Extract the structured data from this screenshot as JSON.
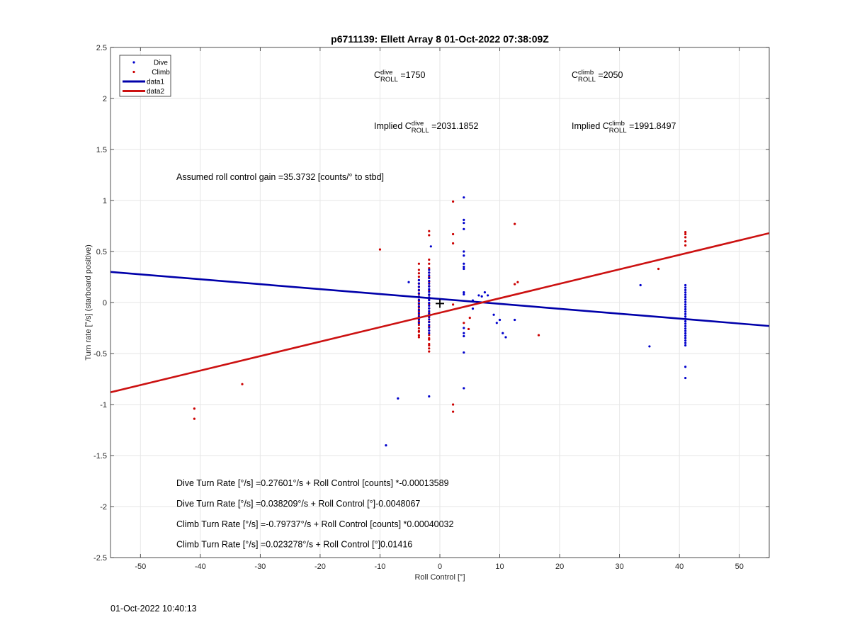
{
  "chart_data": {
    "type": "scatter",
    "title": "p6711139: Ellett Array 8 01-Oct-2022 07:38:09Z",
    "xlabel": "Roll Control [°]",
    "ylabel": "Turn rate [°/s] (starboard positive)",
    "xlim": [
      -55,
      55
    ],
    "ylim": [
      -2.5,
      2.5
    ],
    "xticks": [
      -50,
      -40,
      -30,
      -20,
      -10,
      0,
      10,
      20,
      30,
      40,
      50
    ],
    "yticks": [
      -2.5,
      -2,
      -1.5,
      -1,
      -0.5,
      0,
      0.5,
      1,
      1.5,
      2,
      2.5
    ],
    "xtick_labels": [
      "-50",
      "-40",
      "-30",
      "-20",
      "-10",
      "0",
      "10",
      "20",
      "30",
      "40",
      "50"
    ],
    "ytick_labels": [
      "-2.5",
      "-2",
      "-1.5",
      "-1",
      "-0.5",
      "0",
      "0.5",
      "1",
      "1.5",
      "2",
      "2.5"
    ],
    "grid": true,
    "legend_position": "top-left",
    "legend": [
      {
        "label": "Dive",
        "kind": "dot",
        "color": "#0000cc"
      },
      {
        "label": "Climb",
        "kind": "dot",
        "color": "#cc0000"
      },
      {
        "label": "data1",
        "kind": "line",
        "color": "#0000aa"
      },
      {
        "label": "data2",
        "kind": "line",
        "color": "#cc1111"
      }
    ],
    "series": [
      {
        "name": "Dive",
        "kind": "scatter",
        "color": "#0000cc",
        "points": [
          [
            -9,
            -1.4
          ],
          [
            -7,
            -0.94
          ],
          [
            -5.2,
            0.2
          ],
          [
            -1.8,
            -0.92
          ],
          [
            -1.5,
            0.55
          ],
          [
            4,
            1.03
          ],
          [
            4,
            0.81
          ],
          [
            4,
            0.78
          ],
          [
            4,
            0.72
          ],
          [
            4,
            0.5
          ],
          [
            4,
            0.46
          ],
          [
            4,
            0.38
          ],
          [
            4,
            0.35
          ],
          [
            4,
            0.33
          ],
          [
            4,
            0.1
          ],
          [
            4,
            0.08
          ],
          [
            4,
            -0.25
          ],
          [
            4,
            -0.3
          ],
          [
            4,
            -0.33
          ],
          [
            4,
            -0.49
          ],
          [
            4,
            -0.84
          ],
          [
            5.5,
            0.02
          ],
          [
            5.5,
            -0.06
          ],
          [
            6.5,
            0.07
          ],
          [
            7,
            0.06
          ],
          [
            7.5,
            0.1
          ],
          [
            8,
            0.07
          ],
          [
            9,
            -0.12
          ],
          [
            9.5,
            -0.2
          ],
          [
            10,
            -0.17
          ],
          [
            10.5,
            -0.3
          ],
          [
            11,
            -0.34
          ],
          [
            12.5,
            -0.17
          ],
          [
            33.5,
            0.17
          ],
          [
            35,
            -0.43
          ],
          [
            41,
            -0.63
          ],
          [
            41,
            -0.74
          ]
        ]
      },
      {
        "name": "Climb",
        "kind": "scatter",
        "color": "#cc0000",
        "points": [
          [
            -41,
            -1.04
          ],
          [
            -41,
            -1.14
          ],
          [
            -33,
            -0.8
          ],
          [
            -10,
            0.52
          ],
          [
            -3.5,
            0.38
          ],
          [
            -3.5,
            -0.34
          ],
          [
            -3.5,
            -0.28
          ],
          [
            -1.8,
            0.7
          ],
          [
            -1.8,
            0.66
          ],
          [
            -1.8,
            0.42
          ],
          [
            -1.8,
            -0.35
          ],
          [
            -1.8,
            -0.42
          ],
          [
            -1.8,
            -0.48
          ],
          [
            2.2,
            0.99
          ],
          [
            2.2,
            0.67
          ],
          [
            2.2,
            0.58
          ],
          [
            2.2,
            -0.02
          ],
          [
            2.2,
            -1.0
          ],
          [
            2.2,
            -1.07
          ],
          [
            4,
            -0.2
          ],
          [
            4.8,
            -0.26
          ],
          [
            5,
            -0.15
          ],
          [
            12.5,
            0.77
          ],
          [
            12.5,
            0.18
          ],
          [
            13,
            0.2
          ],
          [
            16.5,
            -0.32
          ],
          [
            36.5,
            0.33
          ],
          [
            41,
            0.69
          ],
          [
            41,
            0.67
          ],
          [
            41,
            0.64
          ],
          [
            41,
            0.6
          ],
          [
            41,
            0.56
          ]
        ]
      }
    ],
    "dense_columns": [
      {
        "series": "Climb",
        "x": -3.5,
        "y_range": [
          -0.32,
          0.32
        ],
        "count": 20
      },
      {
        "series": "Climb",
        "x": -1.8,
        "y_range": [
          -0.45,
          0.38
        ],
        "count": 20
      },
      {
        "series": "Dive",
        "x": -3.5,
        "y_range": [
          -0.2,
          0.22
        ],
        "count": 14
      },
      {
        "series": "Dive",
        "x": -1.8,
        "y_range": [
          -0.3,
          0.32
        ],
        "count": 24
      },
      {
        "series": "Dive",
        "x": 41,
        "y_range": [
          -0.42,
          0.17
        ],
        "count": 26
      }
    ],
    "lines": [
      {
        "name": "data1",
        "color": "#0000aa",
        "x": [
          -55,
          55
        ],
        "y": [
          0.3,
          -0.23
        ]
      },
      {
        "name": "data2",
        "color": "#cc1111",
        "x": [
          -55,
          55
        ],
        "y": [
          -0.88,
          0.68
        ]
      }
    ],
    "marker": {
      "symbol": "+",
      "x": 0,
      "y": -0.01
    },
    "annotations": [
      {
        "parts": [
          {
            "t": "C"
          },
          {
            "t": "dive",
            "sup": true
          },
          {
            "t": "ROLL",
            "sub": true
          },
          {
            "t": " =1750"
          }
        ],
        "x": -11,
        "y": 2.2
      },
      {
        "parts": [
          {
            "t": "C"
          },
          {
            "t": "climb",
            "sup": true
          },
          {
            "t": "ROLL",
            "sub": true
          },
          {
            "t": " =2050"
          }
        ],
        "x": 22,
        "y": 2.2
      },
      {
        "parts": [
          {
            "t": "Implied C"
          },
          {
            "t": "dive",
            "sup": true
          },
          {
            "t": "ROLL",
            "sub": true
          },
          {
            "t": " =2031.1852"
          }
        ],
        "x": -11,
        "y": 1.7
      },
      {
        "parts": [
          {
            "t": "Implied C"
          },
          {
            "t": "climb",
            "sup": true
          },
          {
            "t": "ROLL",
            "sub": true
          },
          {
            "t": " =1991.8497"
          }
        ],
        "x": 22,
        "y": 1.7
      },
      {
        "parts": [
          {
            "t": "Assumed roll control gain =35.3732 [counts/° to stbd]"
          }
        ],
        "x": -44,
        "y": 1.2
      },
      {
        "parts": [
          {
            "t": "Dive Turn Rate [°/s] =0.27601°/s + Roll Control [counts] *-0.00013589"
          }
        ],
        "x": -44,
        "y": -1.8
      },
      {
        "parts": [
          {
            "t": "Dive Turn Rate [°/s] =0.038209°/s + Roll Control [°]-0.0048067"
          }
        ],
        "x": -44,
        "y": -2.0
      },
      {
        "parts": [
          {
            "t": "Climb Turn Rate [°/s] =-0.79737°/s + Roll Control [counts] *0.00040032"
          }
        ],
        "x": -44,
        "y": -2.2
      },
      {
        "parts": [
          {
            "t": "Climb Turn Rate [°/s] =0.023278°/s + Roll Control [°]0.01416"
          }
        ],
        "x": -44,
        "y": -2.4
      }
    ]
  },
  "footer": {
    "timestamp": "01-Oct-2022 10:40:13"
  }
}
